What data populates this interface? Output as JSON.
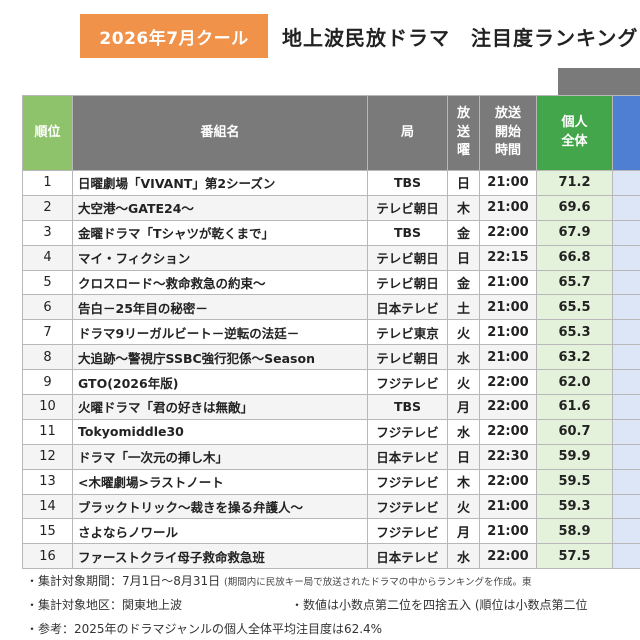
{
  "header": {
    "season": "2026年7月クール",
    "title": "地上波民放ドラマ　注目度ランキング"
  },
  "table": {
    "columns": {
      "rank": "順位",
      "program": "番組名",
      "station": "局",
      "day": [
        "放",
        "送",
        "曜"
      ],
      "start_time": [
        "放送",
        "開始",
        "時間"
      ],
      "score": [
        "個人",
        "全体"
      ]
    },
    "rows": [
      {
        "rank": "1",
        "program": "日曜劇場「VIVANT」第2シーズン",
        "station": "TBS",
        "day": "日",
        "time": "21:00",
        "score": "71.2"
      },
      {
        "rank": "2",
        "program": "大空港～GATE24～",
        "station": "テレビ朝日",
        "day": "木",
        "time": "21:00",
        "score": "69.6"
      },
      {
        "rank": "3",
        "program": "金曜ドラマ「Tシャツが乾くまで」",
        "station": "TBS",
        "day": "金",
        "time": "22:00",
        "score": "67.9"
      },
      {
        "rank": "4",
        "program": "マイ・フィクション",
        "station": "テレビ朝日",
        "day": "日",
        "time": "22:15",
        "score": "66.8"
      },
      {
        "rank": "5",
        "program": "クロスロード～救命救急の約束～",
        "station": "テレビ朝日",
        "day": "金",
        "time": "21:00",
        "score": "65.7"
      },
      {
        "rank": "6",
        "program": "告白－25年目の秘密－",
        "station": "日本テレビ",
        "day": "土",
        "time": "21:00",
        "score": "65.5"
      },
      {
        "rank": "7",
        "program": "ドラマ9リーガルビート－逆転の法廷－",
        "station": "テレビ東京",
        "day": "火",
        "time": "21:00",
        "score": "65.3"
      },
      {
        "rank": "8",
        "program": "大追跡～警視庁SSBC強行犯係～Season",
        "station": "テレビ朝日",
        "day": "水",
        "time": "21:00",
        "score": "63.2"
      },
      {
        "rank": "9",
        "program": "GTO(2026年版)",
        "station": "フジテレビ",
        "day": "火",
        "time": "22:00",
        "score": "62.0"
      },
      {
        "rank": "10",
        "program": "火曜ドラマ「君の好きは無敵」",
        "station": "TBS",
        "day": "月",
        "time": "22:00",
        "score": "61.6"
      },
      {
        "rank": "11",
        "program": "Tokyomiddle30",
        "station": "フジテレビ",
        "day": "水",
        "time": "22:00",
        "score": "60.7"
      },
      {
        "rank": "12",
        "program": "ドラマ「一次元の挿し木」",
        "station": "日本テレビ",
        "day": "日",
        "time": "22:30",
        "score": "59.9"
      },
      {
        "rank": "13",
        "program": "<木曜劇場>ラストノート",
        "station": "フジテレビ",
        "day": "木",
        "time": "22:00",
        "score": "59.5"
      },
      {
        "rank": "14",
        "program": "ブラックトリック～裁きを操る弁護人～",
        "station": "フジテレビ",
        "day": "火",
        "time": "21:00",
        "score": "59.3"
      },
      {
        "rank": "15",
        "program": "さよならノワール",
        "station": "フジテレビ",
        "day": "月",
        "time": "21:00",
        "score": "58.9"
      },
      {
        "rank": "16",
        "program": "ファーストクライ母子救命救急班",
        "station": "日本テレビ",
        "day": "水",
        "time": "22:00",
        "score": "57.5"
      }
    ]
  },
  "notes": {
    "period": "・集計対象期間：7月1日～8月31日",
    "period_note": "(期間内に民放キー局で放送されたドラマの中からランキングを作成。東",
    "region": "・集計対象地区：関東地上波",
    "rounding": "・数値は小数点第二位を四捨五入",
    "rounding_note": "(順位は小数点第二位",
    "reference": "・参考：2025年のドラマジャンルの個人全体平均注目度は62.4%"
  },
  "colors": {
    "season_badge": "#f0924a",
    "header_gray": "#7a7a7a",
    "rank_header": "#8ec26b",
    "score_header": "#44a64a",
    "next_header": "#4f7fd2"
  }
}
